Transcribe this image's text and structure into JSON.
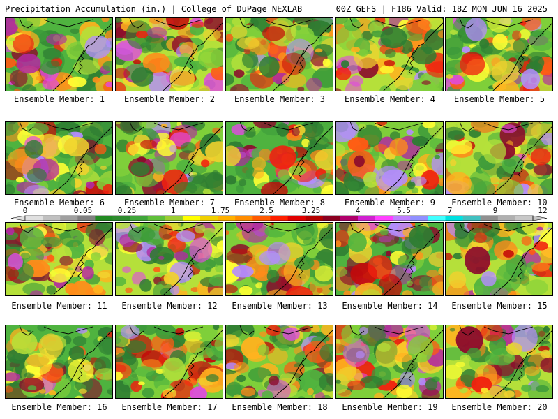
{
  "header": {
    "title": "Precipitation Accumulation (in.) | College of DuPage NEXLAB",
    "run_info": "00Z GEFS | F186 Valid: 18Z MON JUN 16 2025"
  },
  "colors": {
    "palette": [
      "#e0e0e0",
      "#c0c0c0",
      "#a0a0a0",
      "#808080",
      "#228b22",
      "#2e8b2e",
      "#3fa53a",
      "#5fbf3a",
      "#9acd32",
      "#ffff00",
      "#f0d000",
      "#ffb000",
      "#ff8c00",
      "#ff5a00",
      "#ff2000",
      "#e00000",
      "#b40000",
      "#8b0020",
      "#b0006b",
      "#d020d0",
      "#ff40ff",
      "#c080ff",
      "#9090ff",
      "#40ffff",
      "#00e0e0",
      "#40c0c0",
      "#909090",
      "#b0b0b0",
      "#c8c8c8"
    ]
  },
  "colorbar": {
    "ticks": [
      "0",
      "0.05",
      "0.25",
      "1",
      "1.75",
      "2.5",
      "3.25",
      "4",
      "5.5",
      "7",
      "9",
      "12"
    ]
  },
  "members": [
    {
      "label": "Ensemble Member: 1"
    },
    {
      "label": "Ensemble Member: 2"
    },
    {
      "label": "Ensemble Member: 3"
    },
    {
      "label": "Ensemble Member: 4"
    },
    {
      "label": "Ensemble Member: 5"
    },
    {
      "label": "Ensemble Member: 6"
    },
    {
      "label": "Ensemble Member: 7"
    },
    {
      "label": "Ensemble Member: 8"
    },
    {
      "label": "Ensemble Member: 9"
    },
    {
      "label": "Ensemble Member: 10"
    },
    {
      "label": "Ensemble Member: 11"
    },
    {
      "label": "Ensemble Member: 12"
    },
    {
      "label": "Ensemble Member: 13"
    },
    {
      "label": "Ensemble Member: 14"
    },
    {
      "label": "Ensemble Member: 15"
    },
    {
      "label": "Ensemble Member: 16"
    },
    {
      "label": "Ensemble Member: 17"
    },
    {
      "label": "Ensemble Member: 18"
    },
    {
      "label": "Ensemble Member: 19"
    },
    {
      "label": "Ensemble Member: 20"
    }
  ]
}
